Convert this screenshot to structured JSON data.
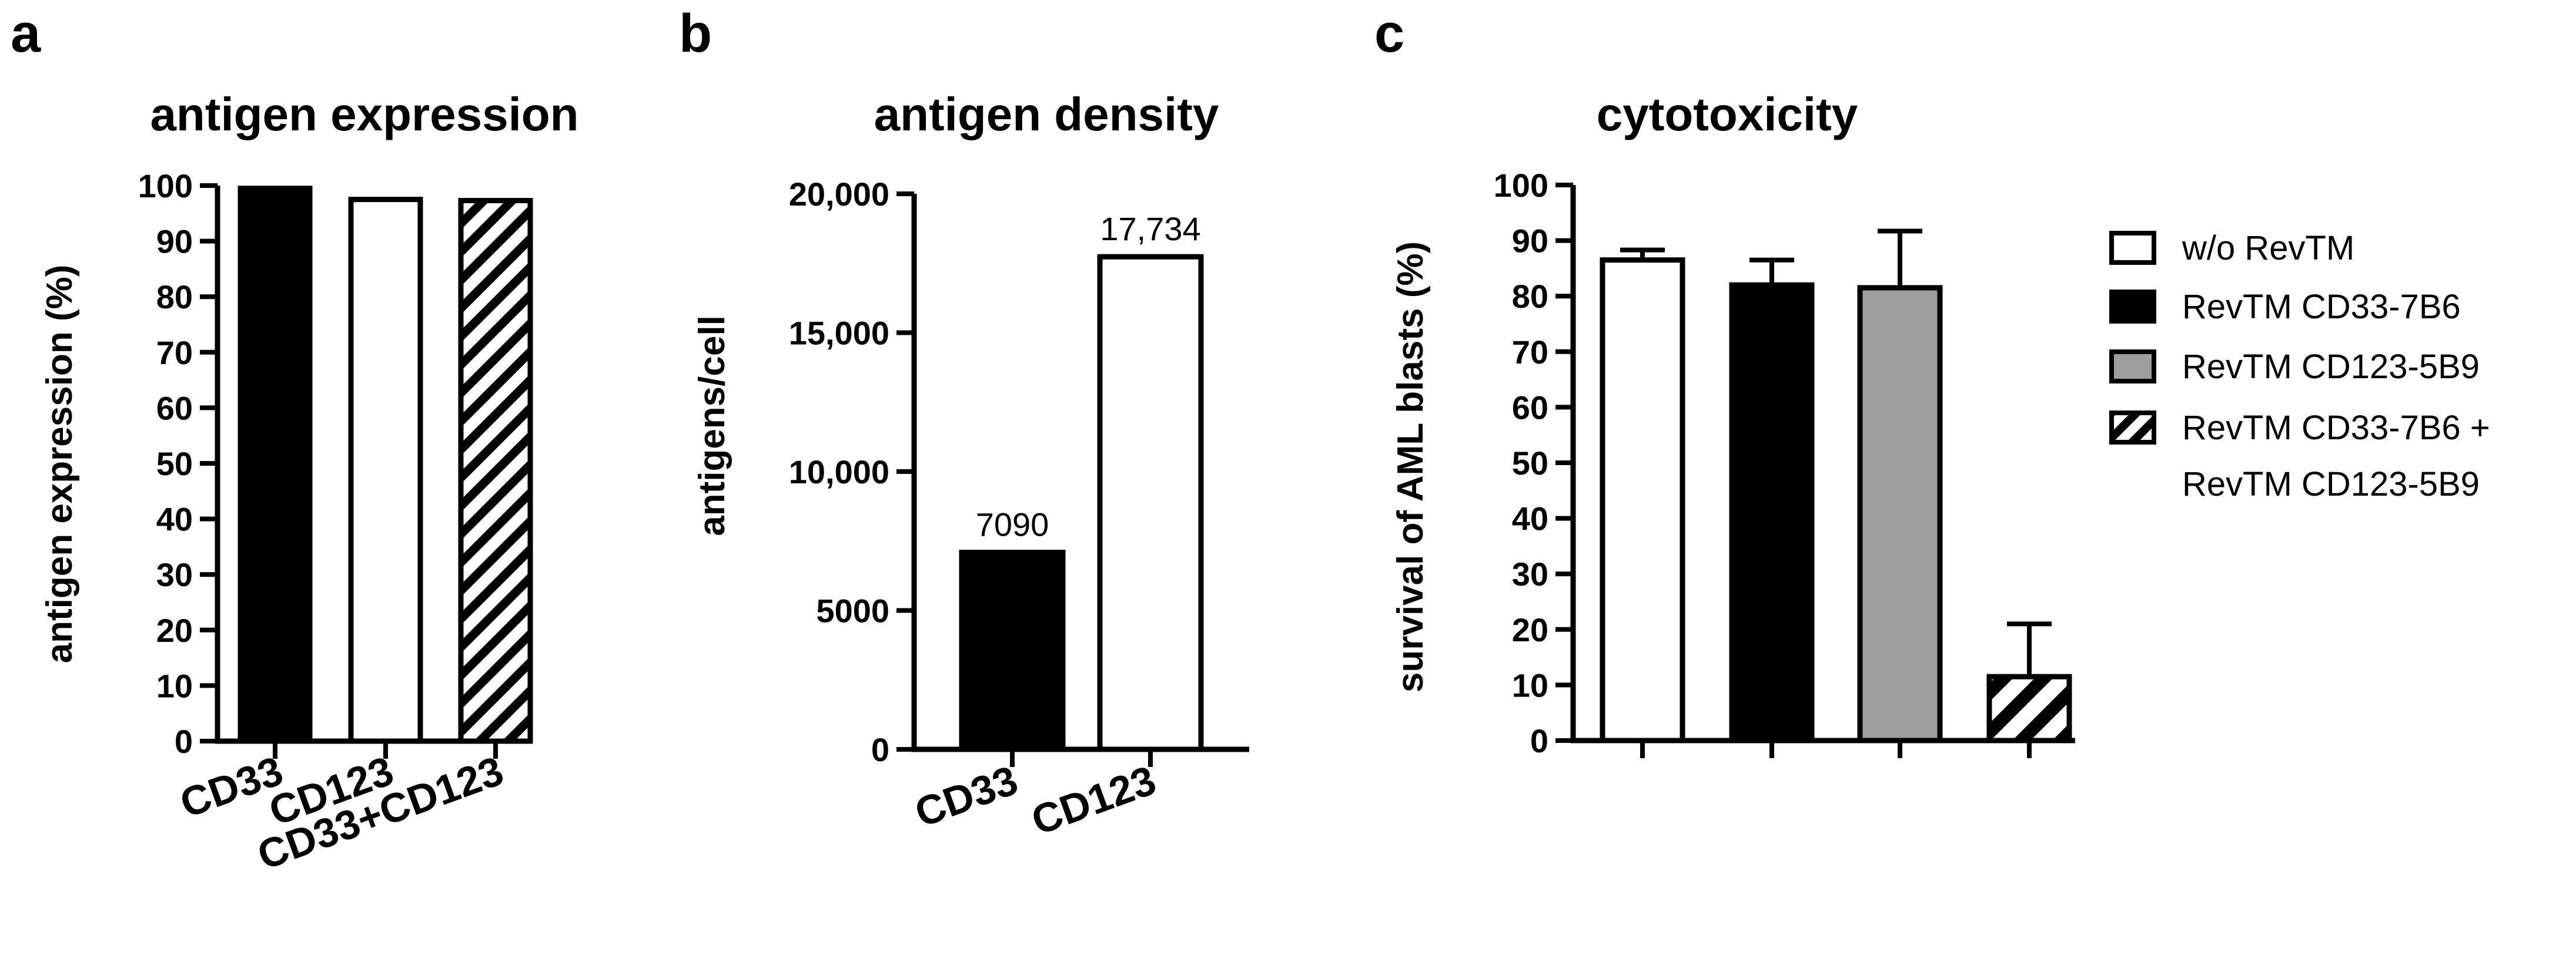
{
  "chart_data": [
    {
      "panel": "a",
      "type": "bar",
      "title": "antigen expression",
      "ylabel": "antigen expression (%)",
      "xlabel": "",
      "categories": [
        "CD33",
        "CD123",
        "CD33+CD123"
      ],
      "values": [
        99.5,
        97.5,
        97.3
      ],
      "fills": [
        "solid-black",
        "white",
        "hatched"
      ],
      "ylim": [
        0,
        100
      ],
      "yticks": [
        "0",
        "10",
        "20",
        "30",
        "40",
        "50",
        "60",
        "70",
        "80",
        "90",
        "100"
      ],
      "grid": false
    },
    {
      "panel": "b",
      "type": "bar",
      "title": "antigen density",
      "ylabel": "antigens/cell",
      "xlabel": "",
      "categories": [
        "CD33",
        "CD123"
      ],
      "values": [
        7090,
        17734
      ],
      "data_labels": [
        "7090",
        "17,734"
      ],
      "fills": [
        "solid-black",
        "white"
      ],
      "ylim": [
        0,
        20000
      ],
      "yticks": [
        "0",
        "5000",
        "10,000",
        "15,000",
        "20,000"
      ],
      "grid": false
    },
    {
      "panel": "c",
      "type": "bar",
      "title": "cytotoxicity",
      "ylabel": "survival of AML blasts (%)",
      "xlabel": "",
      "categories": [
        "",
        "",
        "",
        ""
      ],
      "series": [
        {
          "name": "w/o RevTM",
          "value": 86.5,
          "error": 1.8,
          "fill": "white"
        },
        {
          "name": "RevTM CD33-7B6",
          "value": 82,
          "error": 4.5,
          "fill": "solid-black"
        },
        {
          "name": "RevTM CD123-5B9",
          "value": 81.5,
          "error": 10.2,
          "fill": "grey"
        },
        {
          "name": "RevTM CD33-7B6 + RevTM CD123-5B9",
          "value": 11.5,
          "error": 9.5,
          "fill": "hatched"
        }
      ],
      "legend": {
        "placement": "right",
        "entries": [
          {
            "lines": [
              "w/o RevTM"
            ]
          },
          {
            "lines": [
              "RevTM CD33-7B6"
            ]
          },
          {
            "lines": [
              "RevTM CD123-5B9"
            ]
          },
          {
            "lines": [
              "RevTM CD33-7B6 +",
              "RevTM CD123-5B9"
            ]
          }
        ]
      },
      "ylim": [
        0,
        100
      ],
      "yticks": [
        "0",
        "10",
        "20",
        "30",
        "40",
        "50",
        "60",
        "70",
        "80",
        "90",
        "100"
      ],
      "grid": false
    }
  ],
  "colors": {
    "black": "#000000",
    "white": "#ffffff",
    "grey": "#9e9e9e"
  }
}
